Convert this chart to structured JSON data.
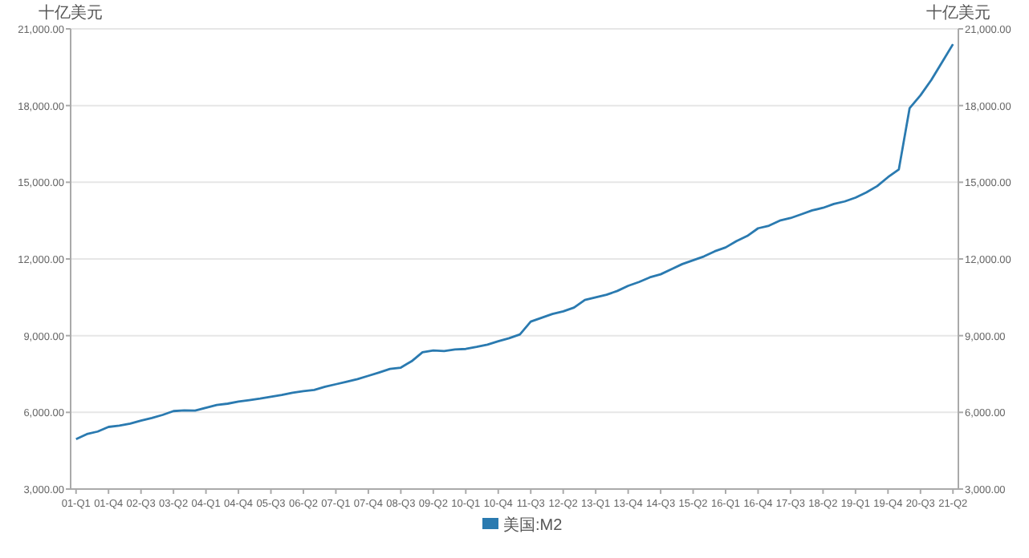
{
  "chart_data": {
    "type": "line",
    "ylabel": "十亿美元",
    "y2label": "十亿美元",
    "categories": [
      "01-Q1",
      null,
      null,
      "01-Q4",
      null,
      null,
      "02-Q3",
      null,
      null,
      "03-Q2",
      null,
      null,
      "04-Q1",
      null,
      null,
      "04-Q4",
      null,
      null,
      "05-Q3",
      null,
      null,
      "06-Q2",
      null,
      null,
      "07-Q1",
      null,
      null,
      "07-Q4",
      null,
      null,
      "08-Q3",
      null,
      null,
      "09-Q2",
      null,
      null,
      "10-Q1",
      null,
      null,
      "10-Q4",
      null,
      null,
      "11-Q3",
      null,
      null,
      "12-Q2",
      null,
      null,
      "13-Q1",
      null,
      null,
      "13-Q4",
      null,
      null,
      "14-Q3",
      null,
      null,
      "15-Q2",
      null,
      null,
      "16-Q1",
      null,
      null,
      "16-Q4",
      null,
      null,
      "17-Q3",
      null,
      null,
      "18-Q2",
      null,
      null,
      "19-Q1",
      null,
      null,
      "19-Q4",
      null,
      null,
      "20-Q3",
      null,
      null,
      "21-Q2"
    ],
    "series": [
      {
        "name": "美国:M2",
        "color": "#2a7ab0",
        "values": [
          4950,
          5150,
          5250,
          5430,
          5480,
          5560,
          5680,
          5780,
          5900,
          6050,
          6080,
          6070,
          6180,
          6290,
          6340,
          6420,
          6480,
          6540,
          6610,
          6680,
          6770,
          6830,
          6880,
          7000,
          7100,
          7200,
          7300,
          7430,
          7560,
          7700,
          7750,
          8000,
          8350,
          8420,
          8400,
          8460,
          8480,
          8560,
          8650,
          8780,
          8900,
          9050,
          9550,
          9700,
          9850,
          9950,
          10100,
          10400,
          10500,
          10600,
          10750,
          10950,
          11100,
          11280,
          11400,
          11600,
          11800,
          11950,
          12100,
          12300,
          12450,
          12700,
          12900,
          13200,
          13300,
          13500,
          13600,
          13750,
          13900,
          14000,
          14150,
          14250,
          14400,
          14600,
          14850,
          15200,
          15500,
          17900,
          18400,
          19000,
          19700,
          20400
        ]
      }
    ],
    "ylim": [
      3000,
      21000
    ],
    "yticks": [
      {
        "value": 3000,
        "label": "3,000.00"
      },
      {
        "value": 6000,
        "label": "6,000.00"
      },
      {
        "value": 9000,
        "label": "9,000.00"
      },
      {
        "value": 12000,
        "label": "12,000.00"
      },
      {
        "value": 15000,
        "label": "15,000.00"
      },
      {
        "value": 18000,
        "label": "18,000.00"
      },
      {
        "value": 21000,
        "label": "21,000.00"
      }
    ],
    "y2lim": [
      3000,
      21000
    ],
    "y2ticks": [
      {
        "value": 3000,
        "label": "3,000.00"
      },
      {
        "value": 6000,
        "label": "6,000.00"
      },
      {
        "value": 9000,
        "label": "9,000.00"
      },
      {
        "value": 12000,
        "label": "12,000.00"
      },
      {
        "value": 15000,
        "label": "15,000.00"
      },
      {
        "value": 18000,
        "label": "18,000.00"
      },
      {
        "value": 21000,
        "label": "21,000.00"
      }
    ],
    "grid": "y",
    "legend": "bottom",
    "marker": "none",
    "line_style": "solid"
  }
}
